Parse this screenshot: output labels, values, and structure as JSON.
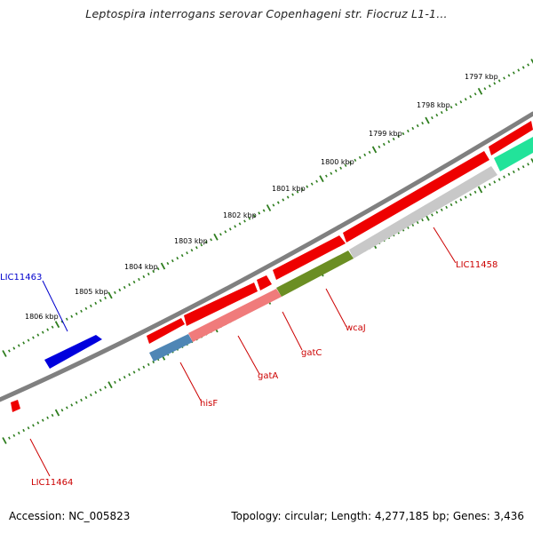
{
  "title": "Leptospira interrogans serovar Copenhageni str. Fiocruz L1-1...",
  "footer": {
    "accession": "Accession: NC_005823",
    "summary": "Topology: circular; Length: 4,277,185 bp; Genes: 3,436"
  },
  "tick_labels": [
    "1797 kbp",
    "1798 kbp",
    "1799 kbp",
    "1800 kbp",
    "1801 kbp",
    "1802 kbp",
    "1803 kbp",
    "1804 kbp",
    "1805 kbp",
    "1806 kbp"
  ],
  "gene_labels": {
    "lic11463": "LIC11463",
    "lic11464": "LIC11464",
    "hisF": "hisF",
    "gatA": "gatA",
    "gatC": "gatC",
    "wcaJ": "wcaJ",
    "lic11458": "LIC11458"
  },
  "colors": {
    "backbone": "#808080",
    "tick": "#2e7d1e",
    "forward_gene": "#ee0000",
    "reverse_gene_blue": "#0000dd",
    "hisF": "#4f86b5",
    "gatA": "#f07b7b",
    "gatC": "#6b8e23",
    "wcaJ": "#c8c8c8",
    "cyan_gene": "#22e39a",
    "label_red": "#cc0000",
    "label_blue": "#0000cc"
  }
}
